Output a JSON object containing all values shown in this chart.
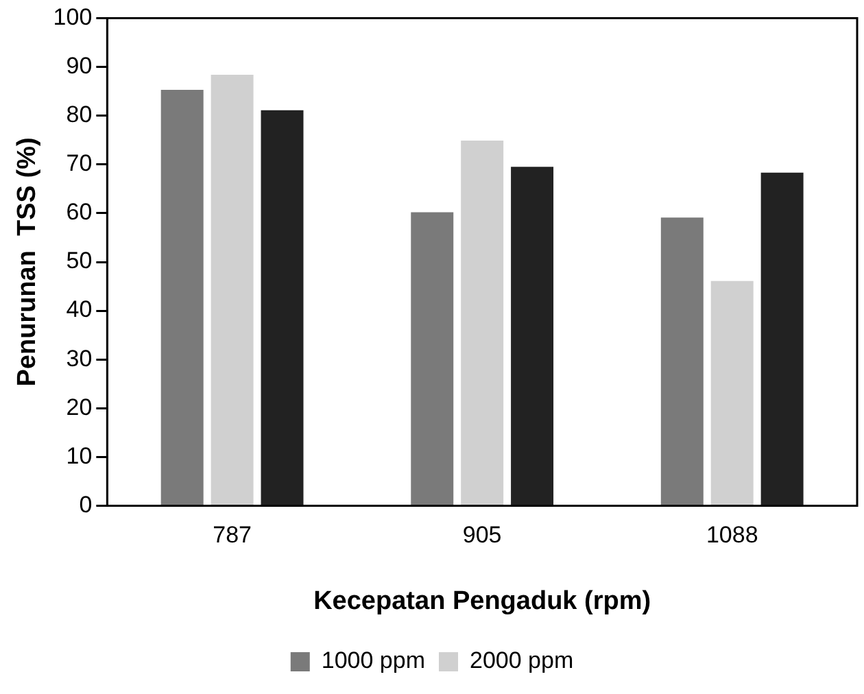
{
  "chart_data": {
    "type": "bar",
    "xlabel": "Kecepatan Pengaduk (rpm)",
    "ylabel": "Penurunan  TSS (%)",
    "categories": [
      "787",
      "905",
      "1088"
    ],
    "series": [
      {
        "name": "1000 ppm",
        "color": "#7a7a7a",
        "values": [
          85.3,
          60.2,
          59.1
        ]
      },
      {
        "name": "2000 ppm",
        "color": "#d0d0d0",
        "values": [
          88.4,
          74.9,
          46.1
        ]
      },
      {
        "color": "#222222",
        "values": [
          81.1,
          69.5,
          68.3
        ]
      }
    ],
    "ylim": [
      0,
      100
    ],
    "yticks": [
      0,
      10,
      20,
      30,
      40,
      50,
      60,
      70,
      80,
      90,
      100
    ],
    "grid": false,
    "legend": "bottom"
  }
}
